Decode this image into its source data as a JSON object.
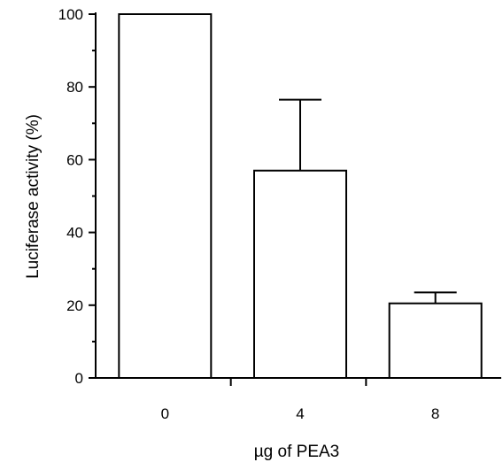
{
  "chart_data": {
    "type": "bar",
    "categories": [
      "0",
      "4",
      "8"
    ],
    "values": [
      100,
      57,
      20.5
    ],
    "error_upper": [
      0,
      19.5,
      3
    ],
    "xlabel": "µg of PEA3",
    "ylabel": "Luciferase activity (%)",
    "ylim": [
      0,
      100
    ],
    "y_ticks": [
      "0",
      "20",
      "40",
      "60",
      "80",
      "100"
    ],
    "grid": false,
    "bar_fill": "#ffffff",
    "bar_stroke": "#000000"
  }
}
